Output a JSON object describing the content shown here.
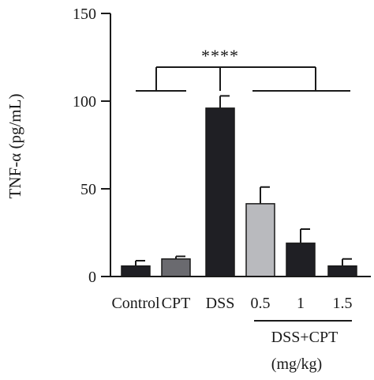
{
  "chart_data": {
    "type": "bar",
    "ylabel": "TNF-α (pg/mL)",
    "ylim": [
      0,
      150
    ],
    "yticks": [
      0,
      50,
      100,
      150
    ],
    "categories": [
      "Control",
      "CPT",
      "DSS",
      "0.5",
      "1",
      "1.5"
    ],
    "values": [
      6,
      10,
      96,
      41.5,
      19,
      6
    ],
    "errors": [
      3,
      1.5,
      7,
      9.5,
      8,
      4
    ],
    "bar_colors": [
      "#1f1f24",
      "#6a6a6f",
      "#1f1f24",
      "#b9babe",
      "#1f1f24",
      "#1f1f24"
    ],
    "group_label_line1": "DSS+CPT",
    "group_label_line2": "(mg/kg)",
    "significance": "****",
    "grid": false,
    "legend": "none"
  }
}
